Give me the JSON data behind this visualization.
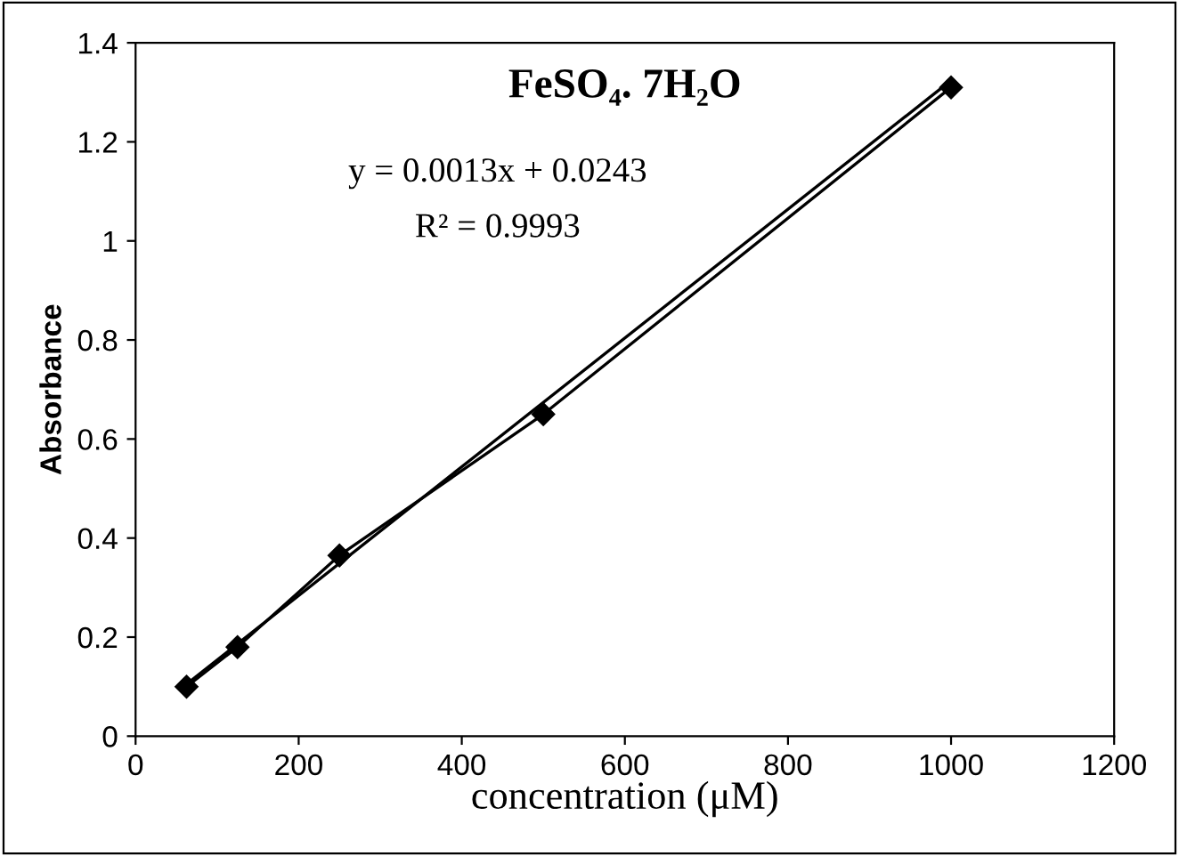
{
  "chart_data": {
    "type": "line",
    "title": "FeSO₄. 7H₂O",
    "xlabel": "concentration (μM)",
    "ylabel": "Absorbance",
    "x": [
      62.5,
      125,
      250,
      500,
      1000
    ],
    "series": [
      {
        "color": "#000000",
        "values": [
          0.1,
          0.18,
          0.365,
          0.65,
          1.31
        ],
        "marker": "diamond"
      },
      {
        "type": "line",
        "color": "#000000",
        "x": [
          62.5,
          1000
        ],
        "values": [
          0.105,
          1.324
        ],
        "marker": "none"
      }
    ],
    "annotations": [
      "y = 0.0013x + 0.0243",
      "R² = 0.9993"
    ],
    "xlim": [
      0,
      1200
    ],
    "xticks": [
      0,
      200,
      400,
      600,
      800,
      1000,
      1200
    ],
    "ylim": [
      0,
      1.4
    ],
    "yticks": [
      0,
      0.2,
      0.4,
      0.6,
      0.8,
      1,
      1.2,
      1.4
    ],
    "grid": false,
    "legend": false,
    "line_style": "solid"
  }
}
